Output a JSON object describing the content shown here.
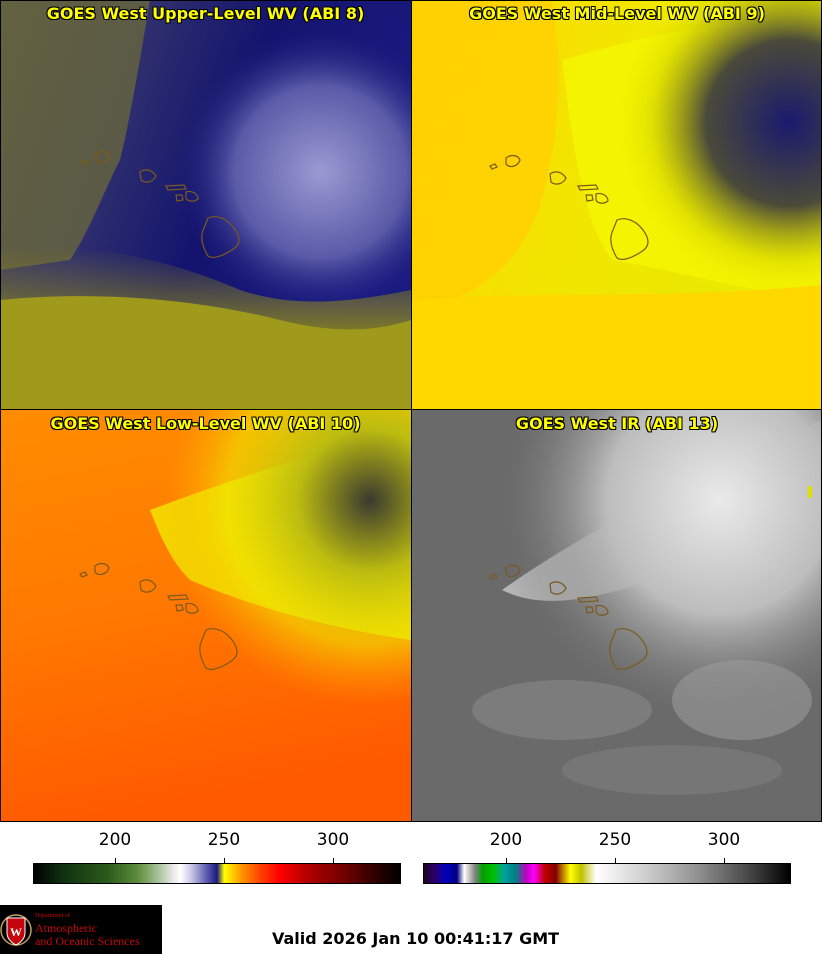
{
  "panels": [
    {
      "title": "GOES West Upper-Level WV (ABI 8)"
    },
    {
      "title": "GOES West Mid-Level WV (ABI 9)"
    },
    {
      "title": "GOES West Low-Level WV (ABI 10)"
    },
    {
      "title": "GOES West IR (ABI 13)"
    }
  ],
  "colorbars": {
    "wv": {
      "ticks": [
        "200",
        "250",
        "300"
      ]
    },
    "ir": {
      "ticks": [
        "200",
        "250",
        "300"
      ]
    }
  },
  "logo": {
    "dept": "Department of",
    "line1": "Atmospheric",
    "line2": "and Oceanic Sciences"
  },
  "footer": {
    "valid": "Valid 2026 Jan 10 00:41:17 GMT"
  },
  "colors": {
    "coastline": "#7a5a1e",
    "title_text": "#ffff00"
  }
}
